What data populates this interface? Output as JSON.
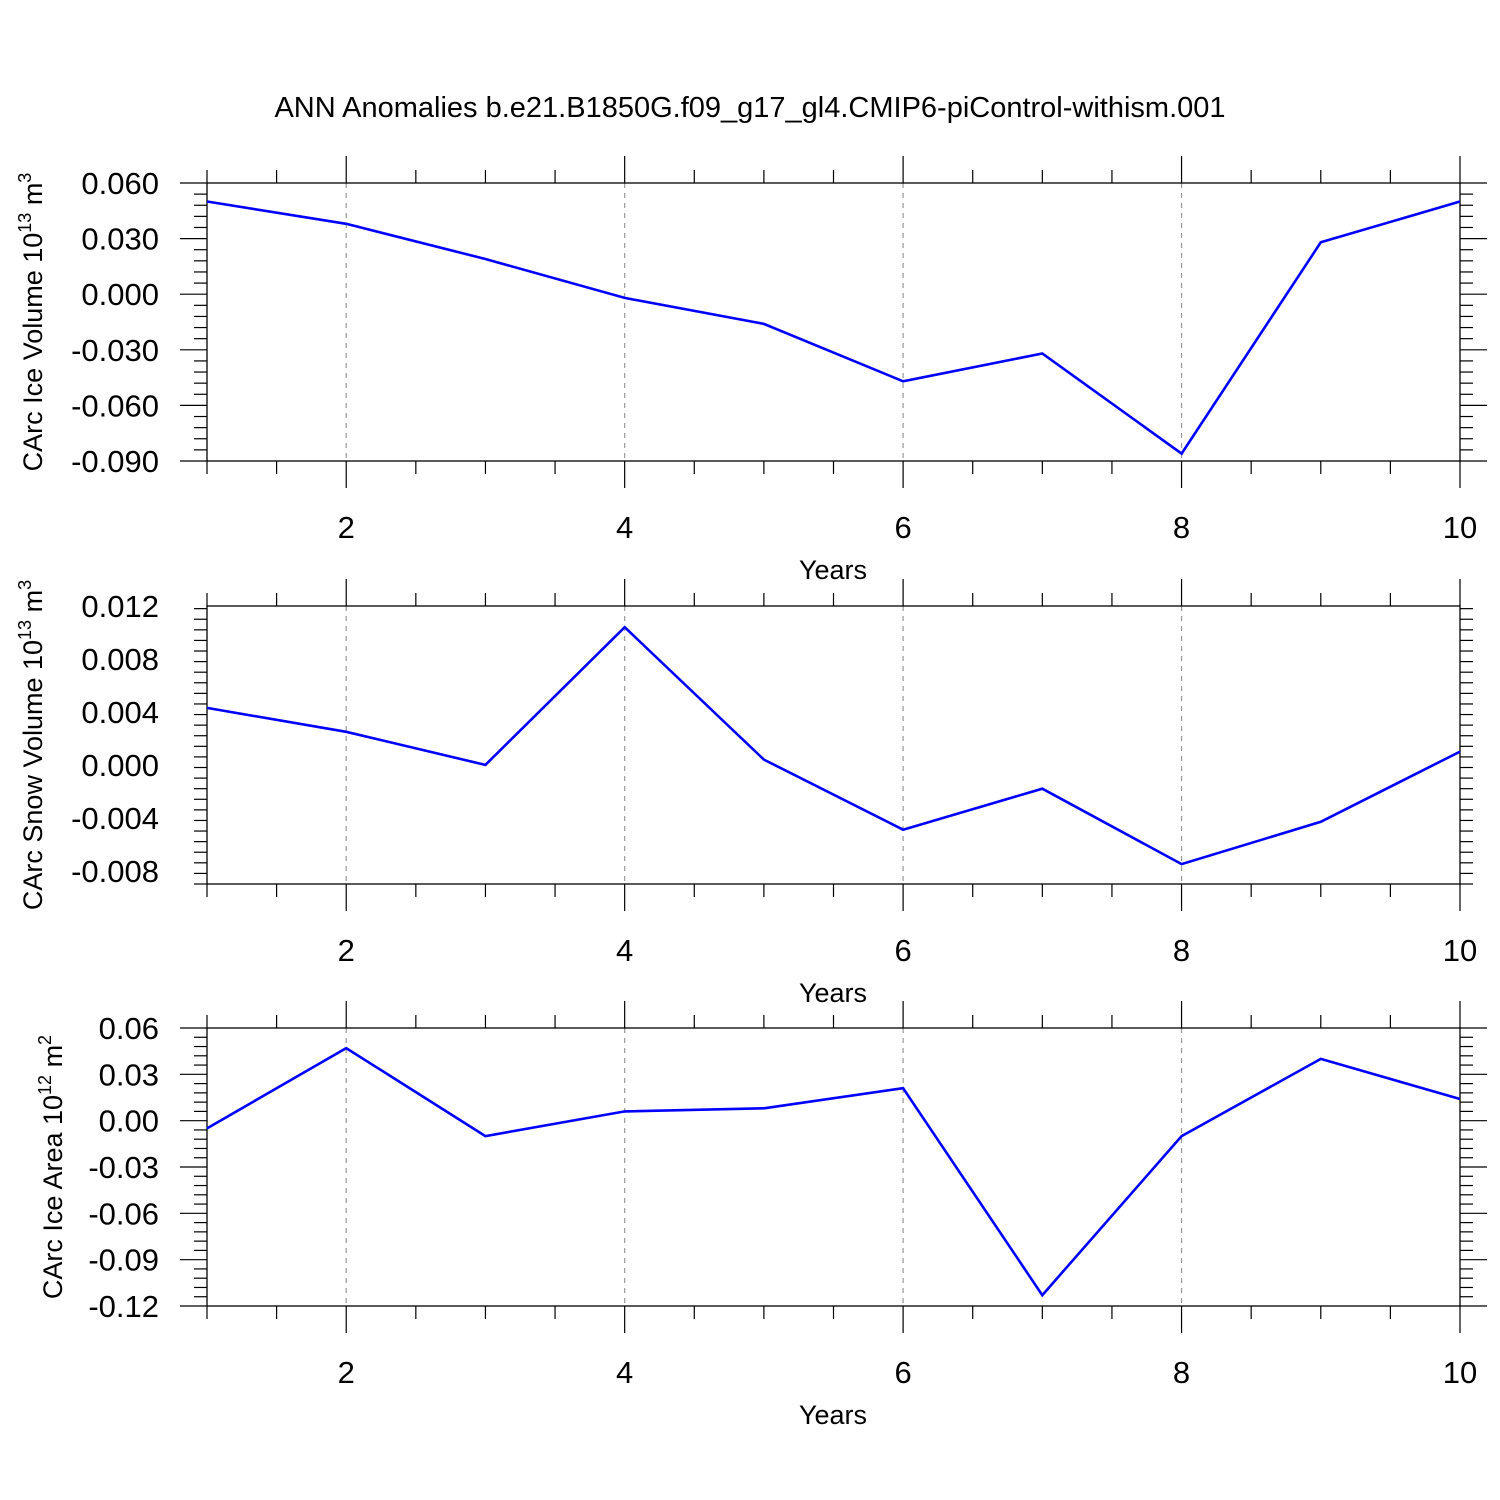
{
  "title": "ANN Anomalies b.e21.B1850G.f09_g17_gl4.CMIP6-piControl-withism.001",
  "line_color": "#0000ff",
  "chart_data": [
    {
      "type": "line",
      "xlabel": "Years",
      "ylabel": {
        "text": "CArc Ice Volume 10",
        "exp": "13",
        "unit": " m",
        "unit_exp": "3"
      },
      "x": [
        1,
        2,
        3,
        4,
        5,
        6,
        7,
        8,
        9,
        10
      ],
      "y": [
        0.05,
        0.038,
        0.019,
        -0.002,
        -0.016,
        -0.047,
        -0.032,
        -0.086,
        0.028,
        0.05
      ],
      "xlim": [
        1,
        10
      ],
      "ylim": [
        -0.09,
        0.06
      ],
      "yticks": [
        "0.060",
        "0.030",
        "0.000",
        "-0.030",
        "-0.060",
        "-0.090"
      ],
      "ytick_values": [
        0.06,
        0.03,
        0.0,
        -0.03,
        -0.06,
        -0.09
      ],
      "xticks": [
        "2",
        "4",
        "6",
        "8",
        "10"
      ],
      "xtick_values": [
        2,
        4,
        6,
        8,
        10
      ],
      "grid": "vertical dashed at major x ticks"
    },
    {
      "type": "line",
      "xlabel": "Years",
      "ylabel": {
        "text": "CArc Snow Volume 10",
        "exp": "13",
        "unit": " m",
        "unit_exp": "3"
      },
      "x": [
        1,
        2,
        3,
        4,
        5,
        6,
        7,
        8,
        9,
        10
      ],
      "y": [
        0.0043,
        0.0025,
        0.0,
        0.0104,
        0.0004,
        -0.0049,
        -0.0018,
        -0.0075,
        -0.0043,
        0.001
      ],
      "xlim": [
        1,
        10
      ],
      "ylim": [
        -0.009,
        0.012
      ],
      "yticks": [
        "0.012",
        "0.008",
        "0.004",
        "0.000",
        "-0.004",
        "-0.008"
      ],
      "ytick_values": [
        0.012,
        0.008,
        0.004,
        0.0,
        -0.004,
        -0.008
      ],
      "xticks": [
        "2",
        "4",
        "6",
        "8",
        "10"
      ],
      "xtick_values": [
        2,
        4,
        6,
        8,
        10
      ],
      "grid": "vertical dashed at major x ticks"
    },
    {
      "type": "line",
      "xlabel": "Years",
      "ylabel": {
        "text": "CArc Ice Area 10",
        "exp": "12",
        "unit": " m",
        "unit_exp": "2"
      },
      "x": [
        1,
        2,
        3,
        4,
        5,
        6,
        7,
        8,
        9,
        10
      ],
      "y": [
        -0.005,
        0.047,
        -0.01,
        0.006,
        0.008,
        0.021,
        -0.113,
        -0.01,
        0.04,
        0.014
      ],
      "xlim": [
        1,
        10
      ],
      "ylim": [
        -0.12,
        0.06
      ],
      "yticks": [
        "0.06",
        "0.03",
        "0.00",
        "-0.03",
        "-0.06",
        "-0.09",
        "-0.12"
      ],
      "ytick_values": [
        0.06,
        0.03,
        0.0,
        -0.03,
        -0.06,
        -0.09,
        -0.12
      ],
      "xticks": [
        "2",
        "4",
        "6",
        "8",
        "10"
      ],
      "xtick_values": [
        2,
        4,
        6,
        8,
        10
      ],
      "grid": "vertical dashed at major x ticks"
    }
  ]
}
